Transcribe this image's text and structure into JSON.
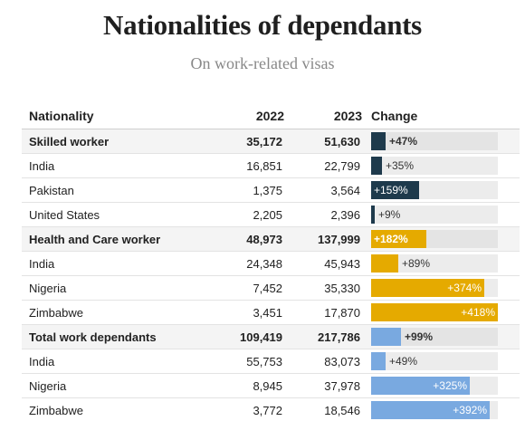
{
  "title": "Nationalities of dependants",
  "subtitle": "On work-related visas",
  "headers": {
    "nationality": "Nationality",
    "y2022": "2022",
    "y2023": "2023",
    "change": "Change"
  },
  "colors": {
    "skilled": "#1e3a4c",
    "health": "#e5aa00",
    "total": "#79a9e0"
  },
  "rows": [
    {
      "label": "Skilled worker",
      "group": true,
      "cat": "skilled",
      "v2022": "35,172",
      "v2023": "51,630",
      "change_label": "+47%",
      "change": 47
    },
    {
      "label": "India",
      "group": false,
      "cat": "skilled",
      "v2022": "16,851",
      "v2023": "22,799",
      "change_label": "+35%",
      "change": 35
    },
    {
      "label": "Pakistan",
      "group": false,
      "cat": "skilled",
      "v2022": "1,375",
      "v2023": "3,564",
      "change_label": "+159%",
      "change": 159
    },
    {
      "label": "United States",
      "group": false,
      "cat": "skilled",
      "v2022": "2,205",
      "v2023": "2,396",
      "change_label": "+9%",
      "change": 9
    },
    {
      "label": "Health and Care worker",
      "group": true,
      "cat": "health",
      "v2022": "48,973",
      "v2023": "137,999",
      "change_label": "+182%",
      "change": 182
    },
    {
      "label": "India",
      "group": false,
      "cat": "health",
      "v2022": "24,348",
      "v2023": "45,943",
      "change_label": "+89%",
      "change": 89
    },
    {
      "label": "Nigeria",
      "group": false,
      "cat": "health",
      "v2022": "7,452",
      "v2023": "35,330",
      "change_label": "+374%",
      "change": 374
    },
    {
      "label": "Zimbabwe",
      "group": false,
      "cat": "health",
      "v2022": "3,451",
      "v2023": "17,870",
      "change_label": "+418%",
      "change": 418
    },
    {
      "label": "Total work dependants",
      "group": true,
      "cat": "total",
      "v2022": "109,419",
      "v2023": "217,786",
      "change_label": "+99%",
      "change": 99
    },
    {
      "label": "India",
      "group": false,
      "cat": "total",
      "v2022": "55,753",
      "v2023": "83,073",
      "change_label": "+49%",
      "change": 49
    },
    {
      "label": "Nigeria",
      "group": false,
      "cat": "total",
      "v2022": "8,945",
      "v2023": "37,978",
      "change_label": "+325%",
      "change": 325
    },
    {
      "label": "Zimbabwe",
      "group": false,
      "cat": "total",
      "v2022": "3,772",
      "v2023": "18,546",
      "change_label": "+392%",
      "change": 392
    }
  ]
}
